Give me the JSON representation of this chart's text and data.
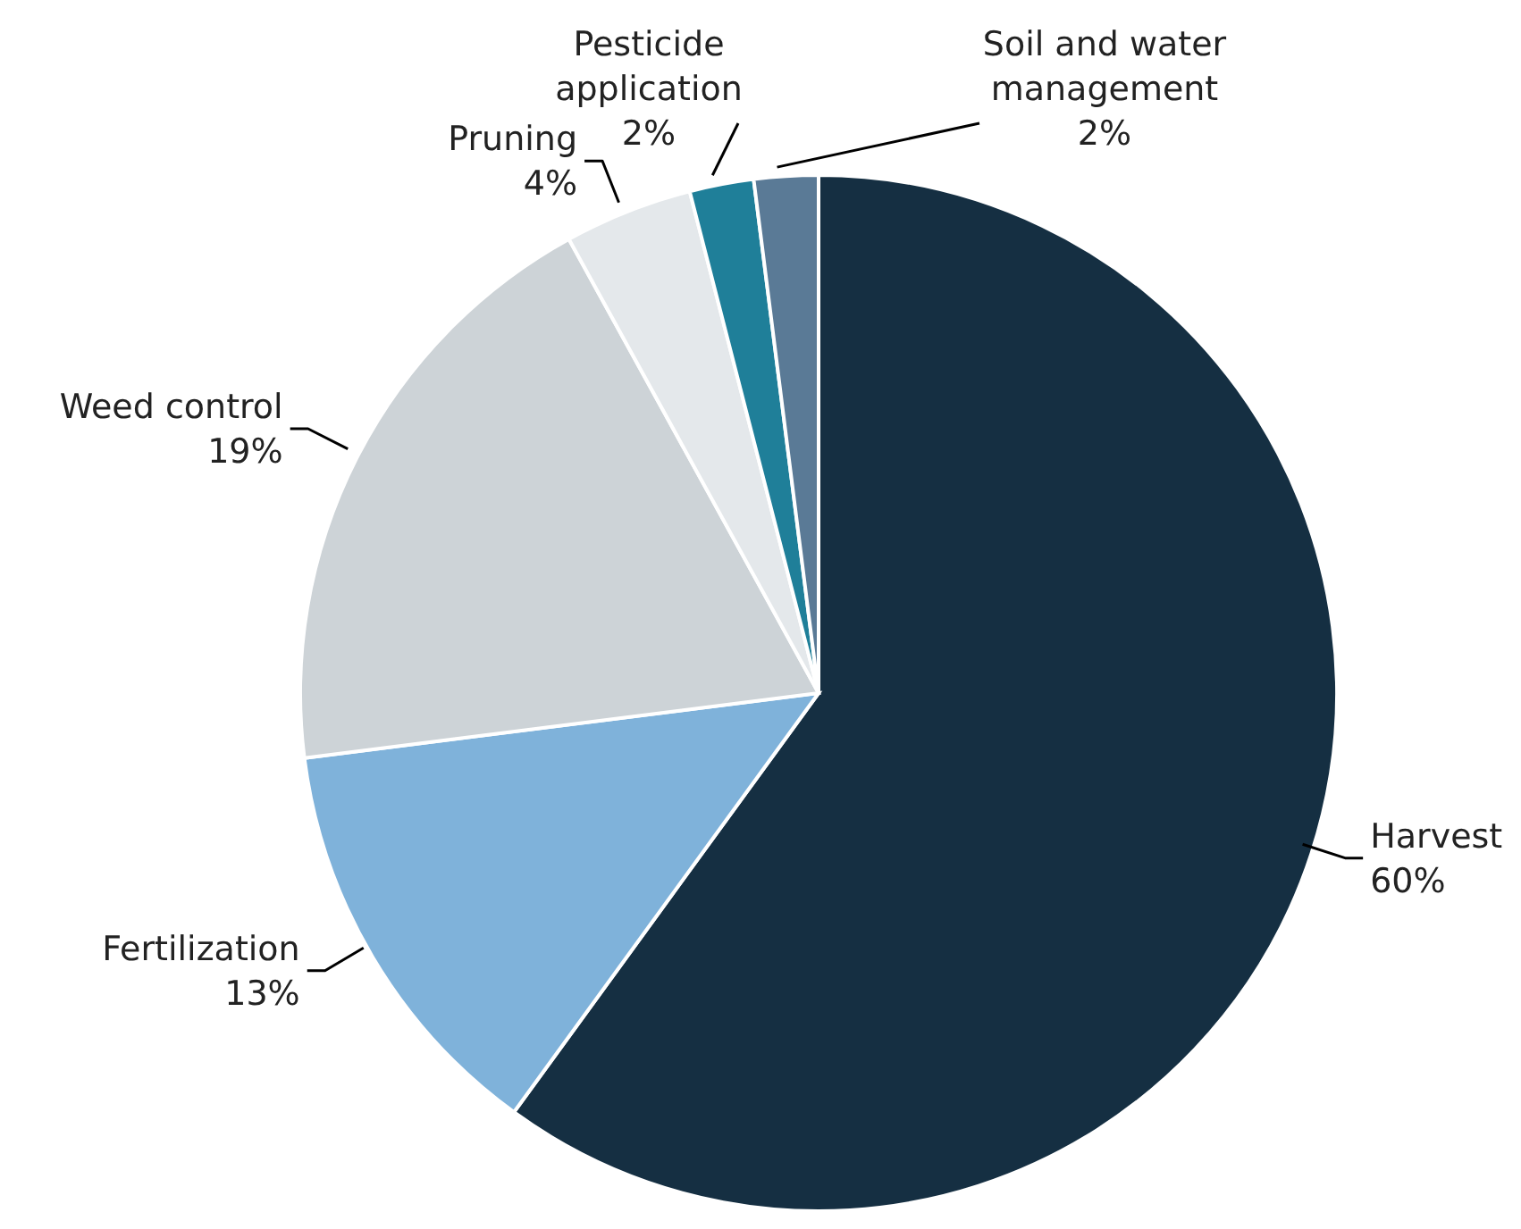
{
  "chart_data": {
    "type": "pie",
    "categories": [
      "Harvest",
      "Fertilization",
      "Weed control",
      "Pruning",
      "Pesticide application",
      "Soil and water management"
    ],
    "values": [
      60,
      13,
      19,
      4,
      2,
      2
    ],
    "value_labels": [
      "60%",
      "13%",
      "19%",
      "4%",
      "2%",
      "2%"
    ],
    "colors": [
      "#152f42",
      "#7fb2da",
      "#cdd3d7",
      "#e4e8eb",
      "#1f7f99",
      "#5a7a96"
    ]
  }
}
